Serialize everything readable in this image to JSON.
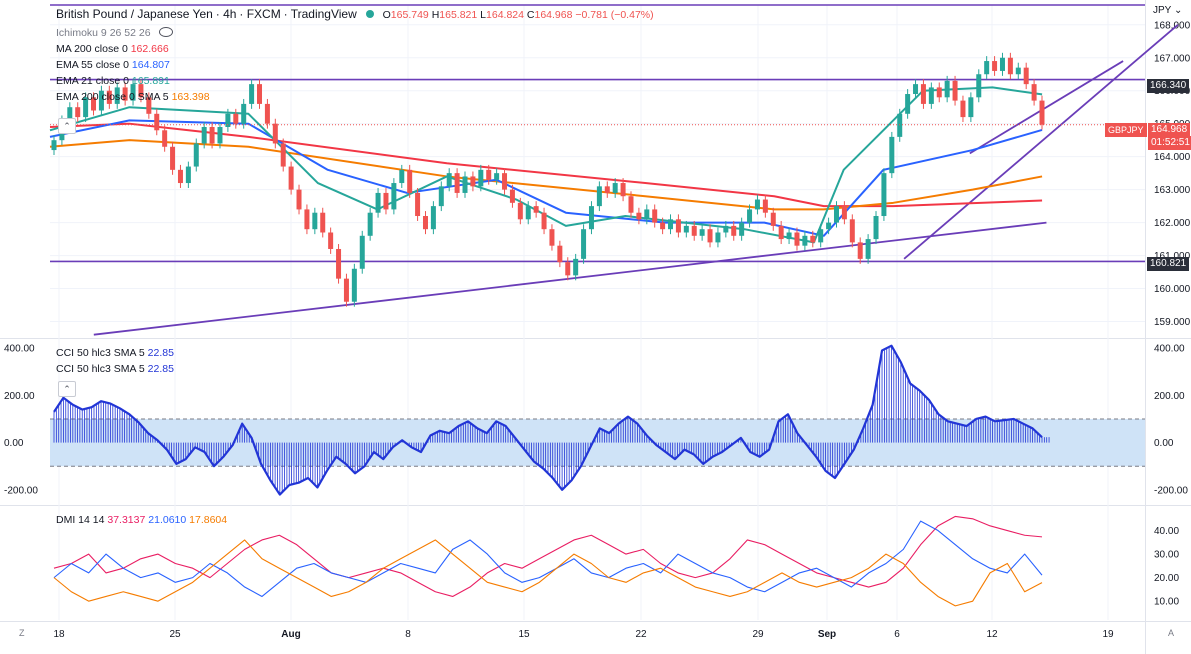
{
  "header": {
    "symbol": "British Pound / Japanese Yen",
    "interval": "4h",
    "exchange": "FXCM",
    "platform": "TradingView",
    "open_label": "O",
    "open": "165.749",
    "high_label": "H",
    "high": "165.821",
    "low_label": "L",
    "low": "164.824",
    "close_label": "C",
    "close": "164.968",
    "change": "−0.781 (−0.47%)"
  },
  "indicators": [
    {
      "label": "Ichimoku 9 26 52 26",
      "value": "",
      "color": "#787b86"
    },
    {
      "label": "MA 200 close 0",
      "value": "162.666",
      "color": "#f23645"
    },
    {
      "label": "EMA 55 close 0",
      "value": "164.807",
      "color": "#2962ff"
    },
    {
      "label": "EMA 21 close 0",
      "value": "165.891",
      "color": "#26a69a"
    },
    {
      "label": "EMA 200 close 0 SMA 5",
      "value": "163.398",
      "color": "#f57c00"
    }
  ],
  "currency_label": "JPY",
  "price_tags": {
    "upper_line": "166.340",
    "symbol_tag": "GBPJPY",
    "last_price": "164.968",
    "countdown": "01:52:51",
    "lower_line": "160.821"
  },
  "cci_legend": [
    {
      "label": "CCI 50 hlc3 SMA 5",
      "value": "22.85"
    },
    {
      "label": "CCI 50 hlc3 SMA 5",
      "value": "22.85"
    }
  ],
  "dmi_legend": {
    "label": "DMI 14 14",
    "adx_plus": "37.3137",
    "adx_minus": "21.0610",
    "adx": "17.8604"
  },
  "colors": {
    "up": "#26a69a",
    "down": "#ef5350",
    "trend": "#6a3db8",
    "dmi_plus": "#e91e63",
    "dmi_minus": "#2962ff",
    "dmi_adx": "#f57c00",
    "cci": "#2235d6",
    "cci_band": "#cfe3f7"
  },
  "chart_data": [
    {
      "type": "candlestick",
      "title": "British Pound / Japanese Yen · 4h · FXCM",
      "ylabel": "JPY",
      "ylim": [
        158.5,
        168.6
      ],
      "y_ticks": [
        "168.000",
        "167.000",
        "166.000",
        "165.000",
        "164.000",
        "163.000",
        "162.000",
        "161.000",
        "160.000",
        "159.000"
      ],
      "x_ticks": [
        "18",
        "25",
        "Aug",
        "8",
        "15",
        "22",
        "29",
        "Sep",
        "6",
        "12",
        "19"
      ],
      "candles": [
        [
          164.2,
          164.5
        ],
        [
          164.5,
          165.1
        ],
        [
          165.1,
          165.5
        ],
        [
          165.5,
          165.2
        ],
        [
          165.2,
          165.8
        ],
        [
          165.8,
          165.4
        ],
        [
          165.4,
          166.0
        ],
        [
          166.0,
          165.6
        ],
        [
          165.6,
          166.1
        ],
        [
          166.1,
          165.7
        ],
        [
          165.7,
          166.2
        ],
        [
          166.2,
          165.8
        ],
        [
          165.8,
          165.3
        ],
        [
          165.3,
          164.8
        ],
        [
          164.8,
          164.3
        ],
        [
          164.3,
          163.6
        ],
        [
          163.6,
          163.2
        ],
        [
          163.2,
          163.7
        ],
        [
          163.7,
          164.4
        ],
        [
          164.4,
          164.9
        ],
        [
          164.9,
          164.4
        ],
        [
          164.4,
          164.9
        ],
        [
          164.9,
          165.3
        ],
        [
          165.3,
          165.0
        ],
        [
          165.0,
          165.6
        ],
        [
          165.6,
          166.2
        ],
        [
          166.2,
          165.6
        ],
        [
          165.6,
          165.0
        ],
        [
          165.0,
          164.4
        ],
        [
          164.4,
          163.7
        ],
        [
          163.7,
          163.0
        ],
        [
          163.0,
          162.4
        ],
        [
          162.4,
          161.8
        ],
        [
          161.8,
          162.3
        ],
        [
          162.3,
          161.7
        ],
        [
          161.7,
          161.2
        ],
        [
          161.2,
          160.3
        ],
        [
          160.3,
          159.6
        ],
        [
          159.6,
          160.6
        ],
        [
          160.6,
          161.6
        ],
        [
          161.6,
          162.3
        ],
        [
          162.3,
          162.9
        ],
        [
          162.9,
          162.4
        ],
        [
          162.4,
          163.2
        ],
        [
          163.2,
          163.6
        ],
        [
          163.6,
          162.9
        ],
        [
          162.9,
          162.2
        ],
        [
          162.2,
          161.8
        ],
        [
          161.8,
          162.5
        ],
        [
          162.5,
          163.1
        ],
        [
          163.1,
          163.5
        ],
        [
          163.5,
          162.9
        ],
        [
          162.9,
          163.4
        ],
        [
          163.4,
          163.1
        ],
        [
          163.1,
          163.6
        ],
        [
          163.6,
          163.3
        ],
        [
          163.3,
          163.5
        ],
        [
          163.5,
          163.0
        ],
        [
          163.0,
          162.6
        ],
        [
          162.6,
          162.1
        ],
        [
          162.1,
          162.5
        ],
        [
          162.5,
          162.3
        ],
        [
          162.3,
          161.8
        ],
        [
          161.8,
          161.3
        ],
        [
          161.3,
          160.8
        ],
        [
          160.8,
          160.4
        ],
        [
          160.4,
          160.9
        ],
        [
          160.9,
          161.8
        ],
        [
          161.8,
          162.5
        ],
        [
          162.5,
          163.1
        ],
        [
          163.1,
          162.9
        ],
        [
          162.9,
          163.2
        ],
        [
          163.2,
          162.8
        ],
        [
          162.8,
          162.3
        ],
        [
          162.3,
          162.1
        ],
        [
          162.1,
          162.4
        ],
        [
          162.4,
          162.0
        ],
        [
          162.0,
          161.8
        ],
        [
          161.8,
          162.1
        ],
        [
          162.1,
          161.7
        ],
        [
          161.7,
          161.9
        ],
        [
          161.9,
          161.6
        ],
        [
          161.6,
          161.8
        ],
        [
          161.8,
          161.4
        ],
        [
          161.4,
          161.7
        ],
        [
          161.7,
          161.9
        ],
        [
          161.9,
          161.6
        ],
        [
          161.6,
          162.0
        ],
        [
          162.0,
          162.4
        ],
        [
          162.4,
          162.7
        ],
        [
          162.7,
          162.3
        ],
        [
          162.3,
          161.9
        ],
        [
          161.9,
          161.5
        ],
        [
          161.5,
          161.7
        ],
        [
          161.7,
          161.3
        ],
        [
          161.3,
          161.6
        ],
        [
          161.6,
          161.4
        ],
        [
          161.4,
          161.8
        ],
        [
          161.8,
          162.0
        ],
        [
          162.0,
          162.5
        ],
        [
          162.5,
          162.1
        ],
        [
          162.1,
          161.4
        ],
        [
          161.4,
          160.9
        ],
        [
          160.9,
          161.5
        ],
        [
          161.5,
          162.2
        ],
        [
          162.2,
          163.5
        ],
        [
          163.5,
          164.6
        ],
        [
          164.6,
          165.3
        ],
        [
          165.3,
          165.9
        ],
        [
          165.9,
          166.2
        ],
        [
          166.2,
          165.6
        ],
        [
          165.6,
          166.1
        ],
        [
          166.1,
          165.8
        ],
        [
          165.8,
          166.3
        ],
        [
          166.3,
          165.7
        ],
        [
          165.7,
          165.2
        ],
        [
          165.2,
          165.8
        ],
        [
          165.8,
          166.5
        ],
        [
          166.5,
          166.9
        ],
        [
          166.9,
          166.6
        ],
        [
          166.6,
          167.0
        ],
        [
          167.0,
          166.5
        ],
        [
          166.5,
          166.7
        ],
        [
          166.7,
          166.2
        ],
        [
          166.2,
          165.7
        ],
        [
          165.7,
          164.97
        ]
      ],
      "overlays": [
        {
          "name": "MA 200 close 0",
          "color": "#f23645",
          "points": [
            [
              0,
              164.9
            ],
            [
              0.08,
              165.0
            ],
            [
              0.2,
              164.6
            ],
            [
              0.4,
              163.8
            ],
            [
              0.6,
              163.2
            ],
            [
              0.73,
              162.8
            ],
            [
              0.78,
              162.5
            ],
            [
              0.85,
              162.5
            ],
            [
              1,
              162.67
            ]
          ]
        },
        {
          "name": "EMA 200 close 0 SMA 5",
          "color": "#f57c00",
          "points": [
            [
              0,
              164.3
            ],
            [
              0.08,
              164.5
            ],
            [
              0.2,
              164.3
            ],
            [
              0.4,
              163.4
            ],
            [
              0.6,
              162.8
            ],
            [
              0.73,
              162.4
            ],
            [
              0.78,
              162.4
            ],
            [
              0.85,
              162.6
            ],
            [
              0.93,
              163.0
            ],
            [
              1,
              163.4
            ]
          ]
        },
        {
          "name": "EMA 55 close 0",
          "color": "#2962ff",
          "points": [
            [
              0,
              164.6
            ],
            [
              0.08,
              165.1
            ],
            [
              0.2,
              165.0
            ],
            [
              0.28,
              163.6
            ],
            [
              0.36,
              162.9
            ],
            [
              0.45,
              163.3
            ],
            [
              0.52,
              162.3
            ],
            [
              0.62,
              162.0
            ],
            [
              0.72,
              162.0
            ],
            [
              0.78,
              161.6
            ],
            [
              0.84,
              163.6
            ],
            [
              0.93,
              164.2
            ],
            [
              1,
              164.81
            ]
          ]
        },
        {
          "name": "EMA 21 close 0",
          "color": "#26a69a",
          "points": [
            [
              0,
              164.8
            ],
            [
              0.08,
              165.5
            ],
            [
              0.2,
              165.3
            ],
            [
              0.27,
              163.2
            ],
            [
              0.33,
              162.4
            ],
            [
              0.4,
              163.4
            ],
            [
              0.47,
              162.7
            ],
            [
              0.52,
              161.9
            ],
            [
              0.58,
              162.2
            ],
            [
              0.7,
              161.8
            ],
            [
              0.77,
              161.4
            ],
            [
              0.8,
              163.6
            ],
            [
              0.88,
              166.0
            ],
            [
              0.95,
              166.1
            ],
            [
              1,
              165.89
            ]
          ]
        }
      ],
      "trend_lines": [
        {
          "from": [
            0.04,
            158.6
          ],
          "to": [
            0.91,
            162.0
          ]
        },
        {
          "from": [
            0.78,
            160.9
          ],
          "to": [
            1.03,
            168.0
          ]
        },
        {
          "from": [
            0.84,
            164.1
          ],
          "to": [
            0.98,
            166.9
          ]
        }
      ],
      "horizontal_lines": [
        166.34,
        160.821,
        168.6
      ]
    },
    {
      "type": "bar",
      "title": "CCI 50 hlc3 SMA 5",
      "ylim": [
        -260,
        430
      ],
      "y_ticks": [
        "400.00",
        "200.00",
        "0.00",
        "-200.00"
      ],
      "band": [
        -100,
        100
      ],
      "last_value": 22.85,
      "values": [
        130,
        190,
        160,
        140,
        150,
        175,
        165,
        145,
        120,
        85,
        40,
        10,
        -30,
        -90,
        -70,
        -20,
        -40,
        -100,
        -60,
        -10,
        80,
        20,
        -90,
        -160,
        -220,
        -180,
        -170,
        -150,
        -190,
        -120,
        -60,
        -90,
        -130,
        -100,
        -40,
        -70,
        -20,
        10,
        -20,
        -40,
        30,
        50,
        40,
        70,
        90,
        60,
        40,
        90,
        70,
        20,
        -30,
        -80,
        -110,
        -150,
        -200,
        -160,
        -100,
        -20,
        60,
        40,
        80,
        110,
        80,
        30,
        -10,
        -40,
        -70,
        -30,
        -50,
        -90,
        -60,
        -40,
        -10,
        20,
        -40,
        -60,
        -30,
        90,
        120,
        40,
        -10,
        -60,
        -120,
        -150,
        -90,
        -30,
        60,
        160,
        390,
        410,
        340,
        250,
        220,
        180,
        120,
        90,
        80,
        70,
        100,
        110,
        90,
        95,
        100,
        80,
        60,
        22.85
      ]
    },
    {
      "type": "line",
      "title": "DMI 14 14",
      "ylim": [
        2,
        50
      ],
      "y_ticks": [
        "40.00",
        "30.00",
        "20.00",
        "10.00"
      ],
      "series": [
        {
          "name": "37.3137",
          "color": "#e91e63",
          "values": [
            24,
            26,
            30,
            22,
            24,
            28,
            30,
            26,
            24,
            20,
            26,
            32,
            36,
            38,
            34,
            28,
            22,
            20,
            22,
            24,
            22,
            18,
            14,
            12,
            16,
            22,
            26,
            24,
            28,
            32,
            36,
            38,
            34,
            30,
            32,
            26,
            22,
            20,
            22,
            28,
            36,
            34,
            30,
            26,
            22,
            20,
            18,
            16,
            18,
            24,
            34,
            42,
            46,
            45,
            42,
            40,
            38,
            37.31
          ]
        },
        {
          "name": "21.0610",
          "color": "#2962ff",
          "values": [
            20,
            26,
            22,
            30,
            24,
            20,
            22,
            18,
            20,
            26,
            22,
            16,
            12,
            18,
            24,
            26,
            22,
            20,
            18,
            22,
            26,
            24,
            22,
            32,
            36,
            30,
            22,
            18,
            20,
            24,
            28,
            22,
            20,
            24,
            26,
            22,
            30,
            26,
            22,
            20,
            16,
            14,
            18,
            22,
            24,
            20,
            16,
            22,
            26,
            32,
            44,
            40,
            34,
            28,
            24,
            22,
            30,
            21.06
          ]
        },
        {
          "name": "17.8604",
          "color": "#f57c00",
          "values": [
            20,
            14,
            10,
            12,
            14,
            12,
            10,
            14,
            18,
            24,
            30,
            36,
            28,
            24,
            20,
            16,
            12,
            14,
            18,
            24,
            28,
            32,
            36,
            30,
            24,
            18,
            16,
            14,
            18,
            24,
            30,
            26,
            20,
            18,
            22,
            24,
            20,
            16,
            14,
            12,
            14,
            18,
            22,
            18,
            16,
            18,
            20,
            24,
            30,
            26,
            18,
            12,
            8,
            10,
            22,
            26,
            14,
            17.86
          ]
        }
      ]
    }
  ]
}
